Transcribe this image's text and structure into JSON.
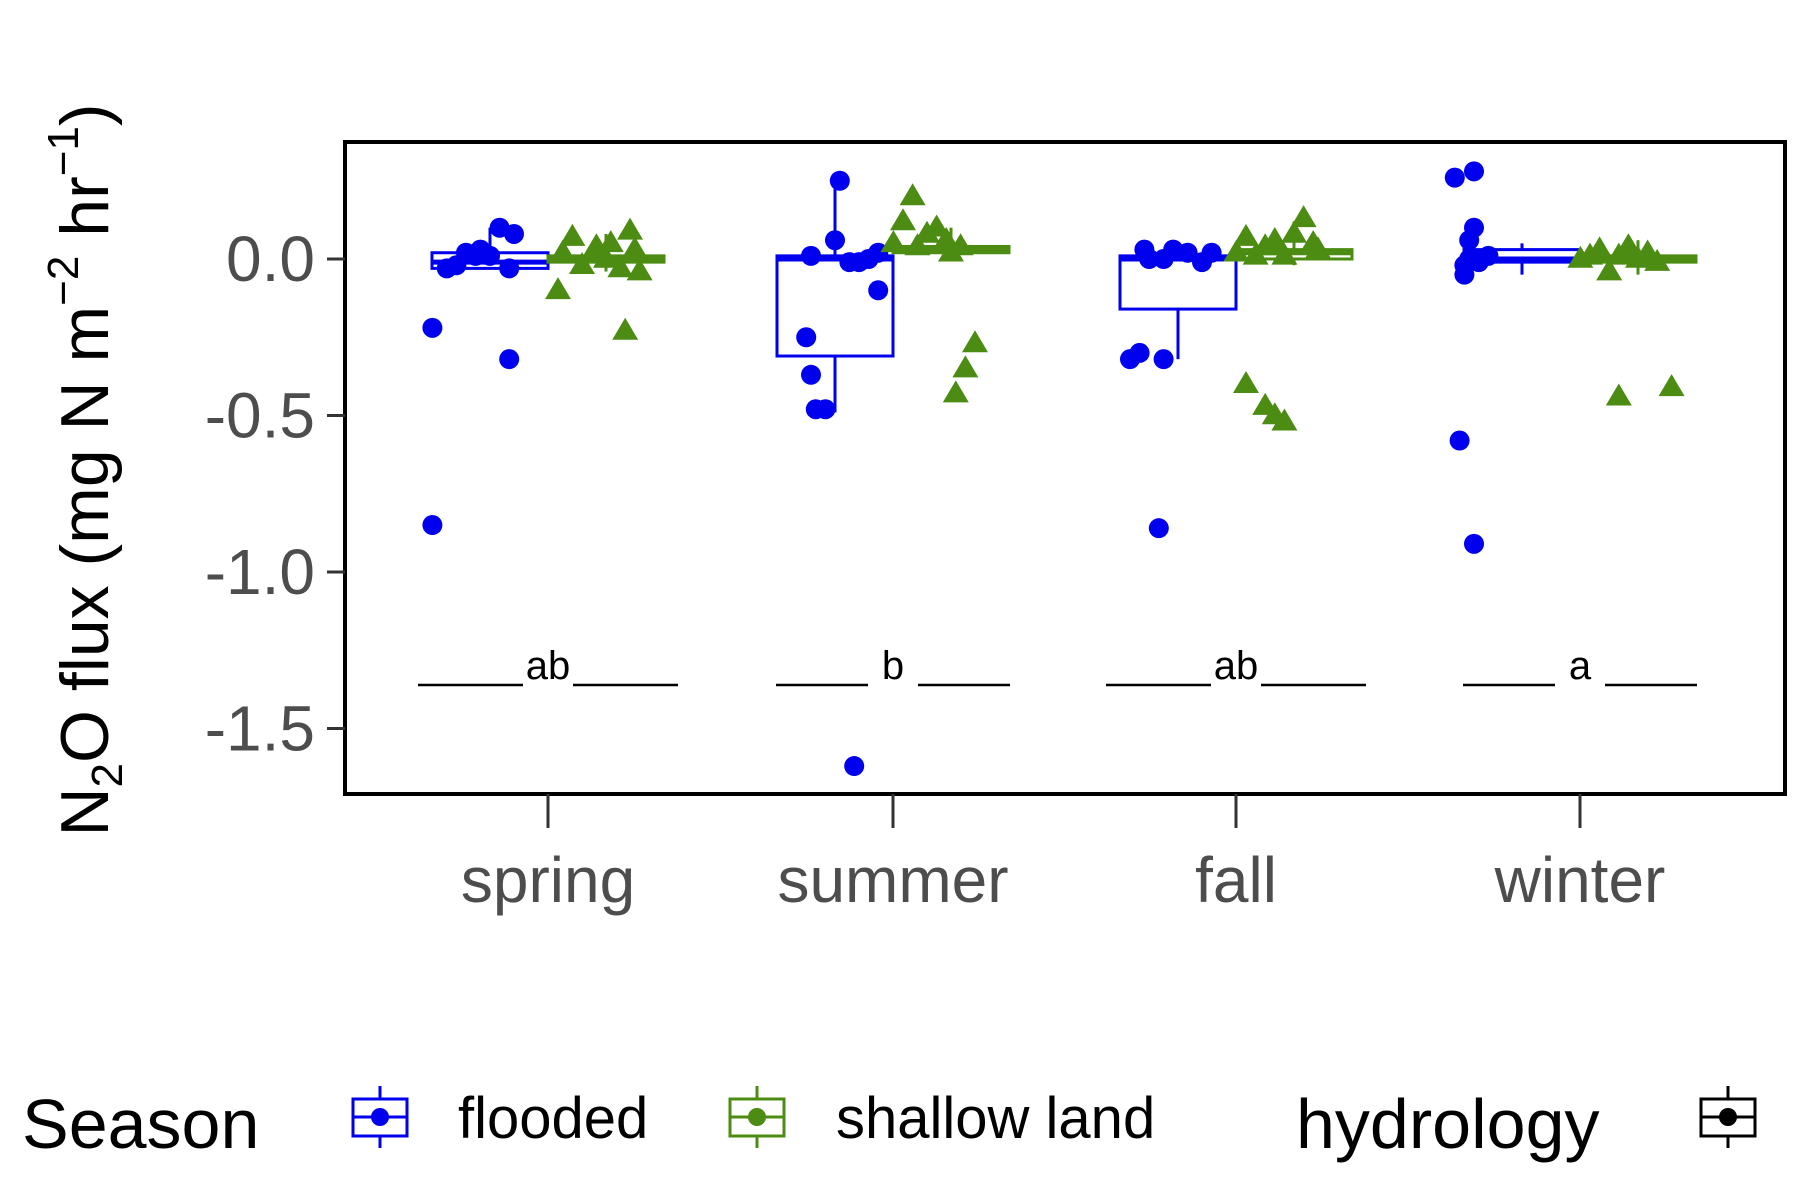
{
  "chart_data": {
    "type": "boxplot",
    "ylabel": "N2O flux (mg N m-2 hr-1)",
    "ylabel_parts": {
      "a": "N",
      "b": "2",
      "c": "O flux (mg N m",
      "d": "−2",
      "e": " hr",
      "f": "−1",
      "g": ")"
    },
    "ylim": [
      -1.65,
      0.37
    ],
    "yticks": [
      0.0,
      -0.5,
      -1.0,
      -1.5
    ],
    "ytick_labels": [
      "0.0",
      "-0.5",
      "-1.0",
      "-1.5"
    ],
    "categories": [
      "spring",
      "summer",
      "fall",
      "winter"
    ],
    "significance": [
      "ab",
      "b",
      "ab",
      "a"
    ],
    "significance_y": -1.31,
    "series": [
      {
        "name": "flooded",
        "color": "#0000ee",
        "marker": "circle",
        "boxes": [
          {
            "q1": -0.03,
            "median": -0.01,
            "q3": 0.02,
            "whisker_low": -0.03,
            "whisker_high": 0.1
          },
          {
            "q1": -0.31,
            "median": 0.0,
            "q3": 0.01,
            "whisker_low": -0.49,
            "whisker_high": 0.25
          },
          {
            "q1": -0.16,
            "median": 0.0,
            "q3": 0.01,
            "whisker_low": -0.32,
            "whisker_high": 0.03
          },
          {
            "q1": -0.01,
            "median": 0.0,
            "q3": 0.03,
            "whisker_low": -0.05,
            "whisker_high": 0.05
          }
        ],
        "points": [
          [
            [
              -0.12,
              -0.85
            ],
            [
              -0.12,
              -0.22
            ],
            [
              -0.09,
              -0.03
            ],
            [
              -0.07,
              -0.02
            ],
            [
              -0.05,
              0.02
            ],
            [
              -0.03,
              0.01
            ],
            [
              -0.02,
              0.03
            ],
            [
              0.0,
              0.01
            ],
            [
              0.02,
              0.1
            ],
            [
              0.04,
              -0.03
            ],
            [
              0.05,
              0.08
            ],
            [
              0.04,
              -0.32
            ]
          ],
          [
            [
              -0.06,
              -0.25
            ],
            [
              -0.05,
              -0.37
            ],
            [
              -0.04,
              -0.48
            ],
            [
              -0.02,
              -0.48
            ],
            [
              -0.05,
              0.01
            ],
            [
              0.0,
              0.06
            ],
            [
              0.03,
              -0.01
            ],
            [
              0.05,
              -0.01
            ],
            [
              0.07,
              0.0
            ],
            [
              0.09,
              0.02
            ],
            [
              0.09,
              -0.1
            ],
            [
              0.01,
              0.25
            ],
            [
              0.04,
              -1.62
            ]
          ],
          [
            [
              -0.1,
              -0.32
            ],
            [
              -0.08,
              -0.3
            ],
            [
              -0.03,
              -0.32
            ],
            [
              -0.07,
              0.03
            ],
            [
              -0.06,
              0.0
            ],
            [
              -0.03,
              0.0
            ],
            [
              -0.01,
              0.03
            ],
            [
              0.02,
              0.02
            ],
            [
              0.05,
              -0.01
            ],
            [
              0.07,
              0.02
            ],
            [
              -0.04,
              -0.86
            ]
          ],
          [
            [
              -0.14,
              0.26
            ],
            [
              -0.12,
              -0.05
            ],
            [
              -0.13,
              -0.58
            ],
            [
              -0.1,
              0.1
            ],
            [
              -0.09,
              0.0
            ],
            [
              -0.11,
              0.0
            ],
            [
              -0.07,
              0.01
            ],
            [
              -0.1,
              0.28
            ],
            [
              -0.1,
              -0.91
            ],
            [
              -0.12,
              -0.02
            ],
            [
              -0.11,
              0.06
            ],
            [
              -0.09,
              -0.01
            ]
          ]
        ]
      },
      {
        "name": "shallow land",
        "color": "#4c8c12",
        "marker": "triangle",
        "boxes": [
          {
            "q1": -0.01,
            "median": 0.0,
            "q3": 0.01,
            "whisker_low": -0.04,
            "whisker_high": 0.08
          },
          {
            "q1": 0.02,
            "median": 0.03,
            "q3": 0.04,
            "whisker_low": 0.0,
            "whisker_high": 0.1
          },
          {
            "q1": 0.0,
            "median": 0.02,
            "q3": 0.03,
            "whisker_low": -0.02,
            "whisker_high": 0.12
          },
          {
            "q1": -0.01,
            "median": 0.0,
            "q3": 0.01,
            "whisker_low": -0.05,
            "whisker_high": 0.06
          }
        ],
        "points": [
          [
            [
              -0.1,
              -0.1
            ],
            [
              -0.09,
              0.02
            ],
            [
              -0.07,
              0.07
            ],
            [
              -0.05,
              -0.02
            ],
            [
              -0.02,
              0.04
            ],
            [
              0.0,
              0.0
            ],
            [
              0.01,
              0.05
            ],
            [
              0.03,
              -0.03
            ],
            [
              0.05,
              0.09
            ],
            [
              0.04,
              -0.23
            ],
            [
              0.06,
              0.03
            ],
            [
              0.07,
              -0.04
            ]
          ],
          [
            [
              -0.12,
              0.05
            ],
            [
              -0.1,
              0.12
            ],
            [
              -0.08,
              0.2
            ],
            [
              -0.07,
              0.04
            ],
            [
              -0.05,
              0.08
            ],
            [
              -0.03,
              0.1
            ],
            [
              -0.01,
              0.06
            ],
            [
              0.0,
              0.02
            ],
            [
              0.02,
              0.04
            ],
            [
              0.03,
              -0.35
            ],
            [
              0.05,
              -0.27
            ],
            [
              0.01,
              -0.43
            ]
          ],
          [
            [
              -0.12,
              0.02
            ],
            [
              -0.1,
              0.07
            ],
            [
              -0.08,
              0.01
            ],
            [
              -0.06,
              0.04
            ],
            [
              -0.04,
              0.06
            ],
            [
              -0.02,
              0.01
            ],
            [
              0.0,
              0.08
            ],
            [
              0.02,
              0.13
            ],
            [
              0.04,
              0.05
            ],
            [
              0.05,
              0.03
            ],
            [
              -0.1,
              -0.4
            ],
            [
              -0.06,
              -0.47
            ],
            [
              -0.04,
              -0.5
            ],
            [
              -0.02,
              -0.52
            ]
          ],
          [
            [
              -0.12,
              0.0
            ],
            [
              -0.1,
              0.01
            ],
            [
              -0.08,
              0.03
            ],
            [
              -0.06,
              -0.04
            ],
            [
              -0.04,
              0.01
            ],
            [
              -0.02,
              0.04
            ],
            [
              0.0,
              0.0
            ],
            [
              0.02,
              0.02
            ],
            [
              0.04,
              -0.01
            ],
            [
              -0.04,
              -0.44
            ],
            [
              0.07,
              -0.41
            ]
          ]
        ]
      }
    ],
    "legend": {
      "title": "Season",
      "entries": [
        "flooded",
        "shallow land"
      ],
      "second_title": "hydrology",
      "placement": "bottom"
    }
  },
  "colors": {
    "flooded": "#0000ee",
    "shallow_land": "#4c8c12",
    "axis": "#000000"
  }
}
